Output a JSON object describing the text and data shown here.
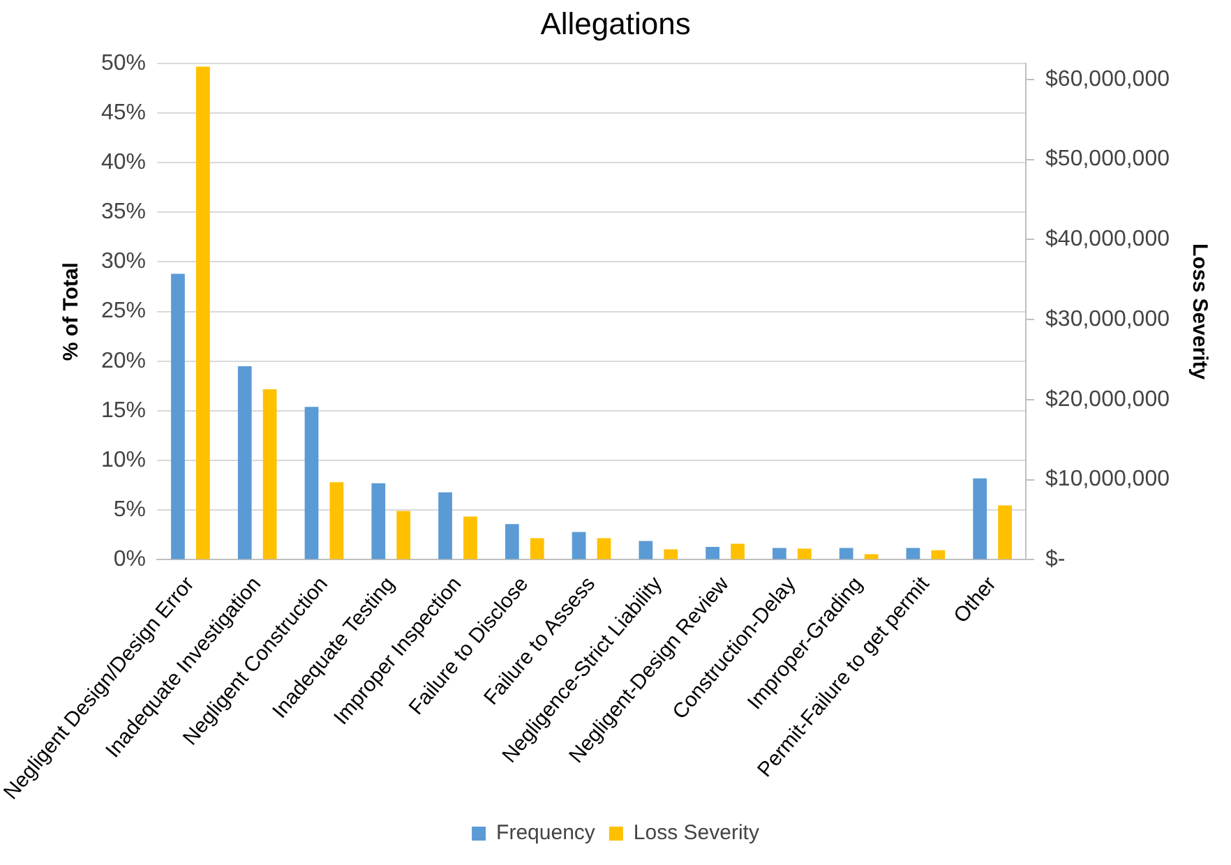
{
  "chart_data": {
    "type": "bar",
    "title": "Allegations",
    "ylabel": "% of Total",
    "y2label": "Loss Severity",
    "categories": [
      "Negligent Design/Design Error",
      "Inadequate Investigation",
      "Negligent Construction",
      "Inadequate Testing",
      "Improper Inspection",
      "Failure to Disclose",
      "Failure to Assess",
      "Negligence-Strict Liability",
      "Negligent-Design Review",
      "Construction-Delay",
      "Improper-Grading",
      "Permit-Failure to get permit",
      "Other"
    ],
    "series": [
      {
        "name": "Frequency",
        "color": "#5b9bd5",
        "values": [
          28.8,
          19.5,
          15.4,
          7.7,
          6.8,
          3.6,
          2.8,
          1.9,
          1.3,
          1.2,
          1.2,
          1.2,
          8.2
        ]
      },
      {
        "name": "Loss Severity",
        "color": "#ffc000",
        "axis": "y2",
        "values": [
          61600000,
          21300000,
          9700000,
          6100000,
          5400000,
          2700000,
          2700000,
          1300000,
          2000000,
          1400000,
          700000,
          1200000,
          6800000
        ]
      }
    ],
    "ylim": [
      0,
      50
    ],
    "yticks": [
      {
        "value": 0,
        "label": "0%"
      },
      {
        "value": 5,
        "label": "5%"
      },
      {
        "value": 10,
        "label": "10%"
      },
      {
        "value": 15,
        "label": "15%"
      },
      {
        "value": 20,
        "label": "20%"
      },
      {
        "value": 25,
        "label": "25%"
      },
      {
        "value": 30,
        "label": "30%"
      },
      {
        "value": 35,
        "label": "35%"
      },
      {
        "value": 40,
        "label": "40%"
      },
      {
        "value": 45,
        "label": "45%"
      },
      {
        "value": 50,
        "label": "50%"
      }
    ],
    "y2lim": [
      0,
      62000000
    ],
    "y2ticks": [
      {
        "value": 0,
        "label": "$-"
      },
      {
        "value": 10000000,
        "label": "$10,000,000"
      },
      {
        "value": 20000000,
        "label": "$20,000,000"
      },
      {
        "value": 30000000,
        "label": "$30,000,000"
      },
      {
        "value": 40000000,
        "label": "$40,000,000"
      },
      {
        "value": 50000000,
        "label": "$50,000,000"
      },
      {
        "value": 60000000,
        "label": "$60,000,000"
      }
    ],
    "grid": "y",
    "legend": "bottom"
  }
}
